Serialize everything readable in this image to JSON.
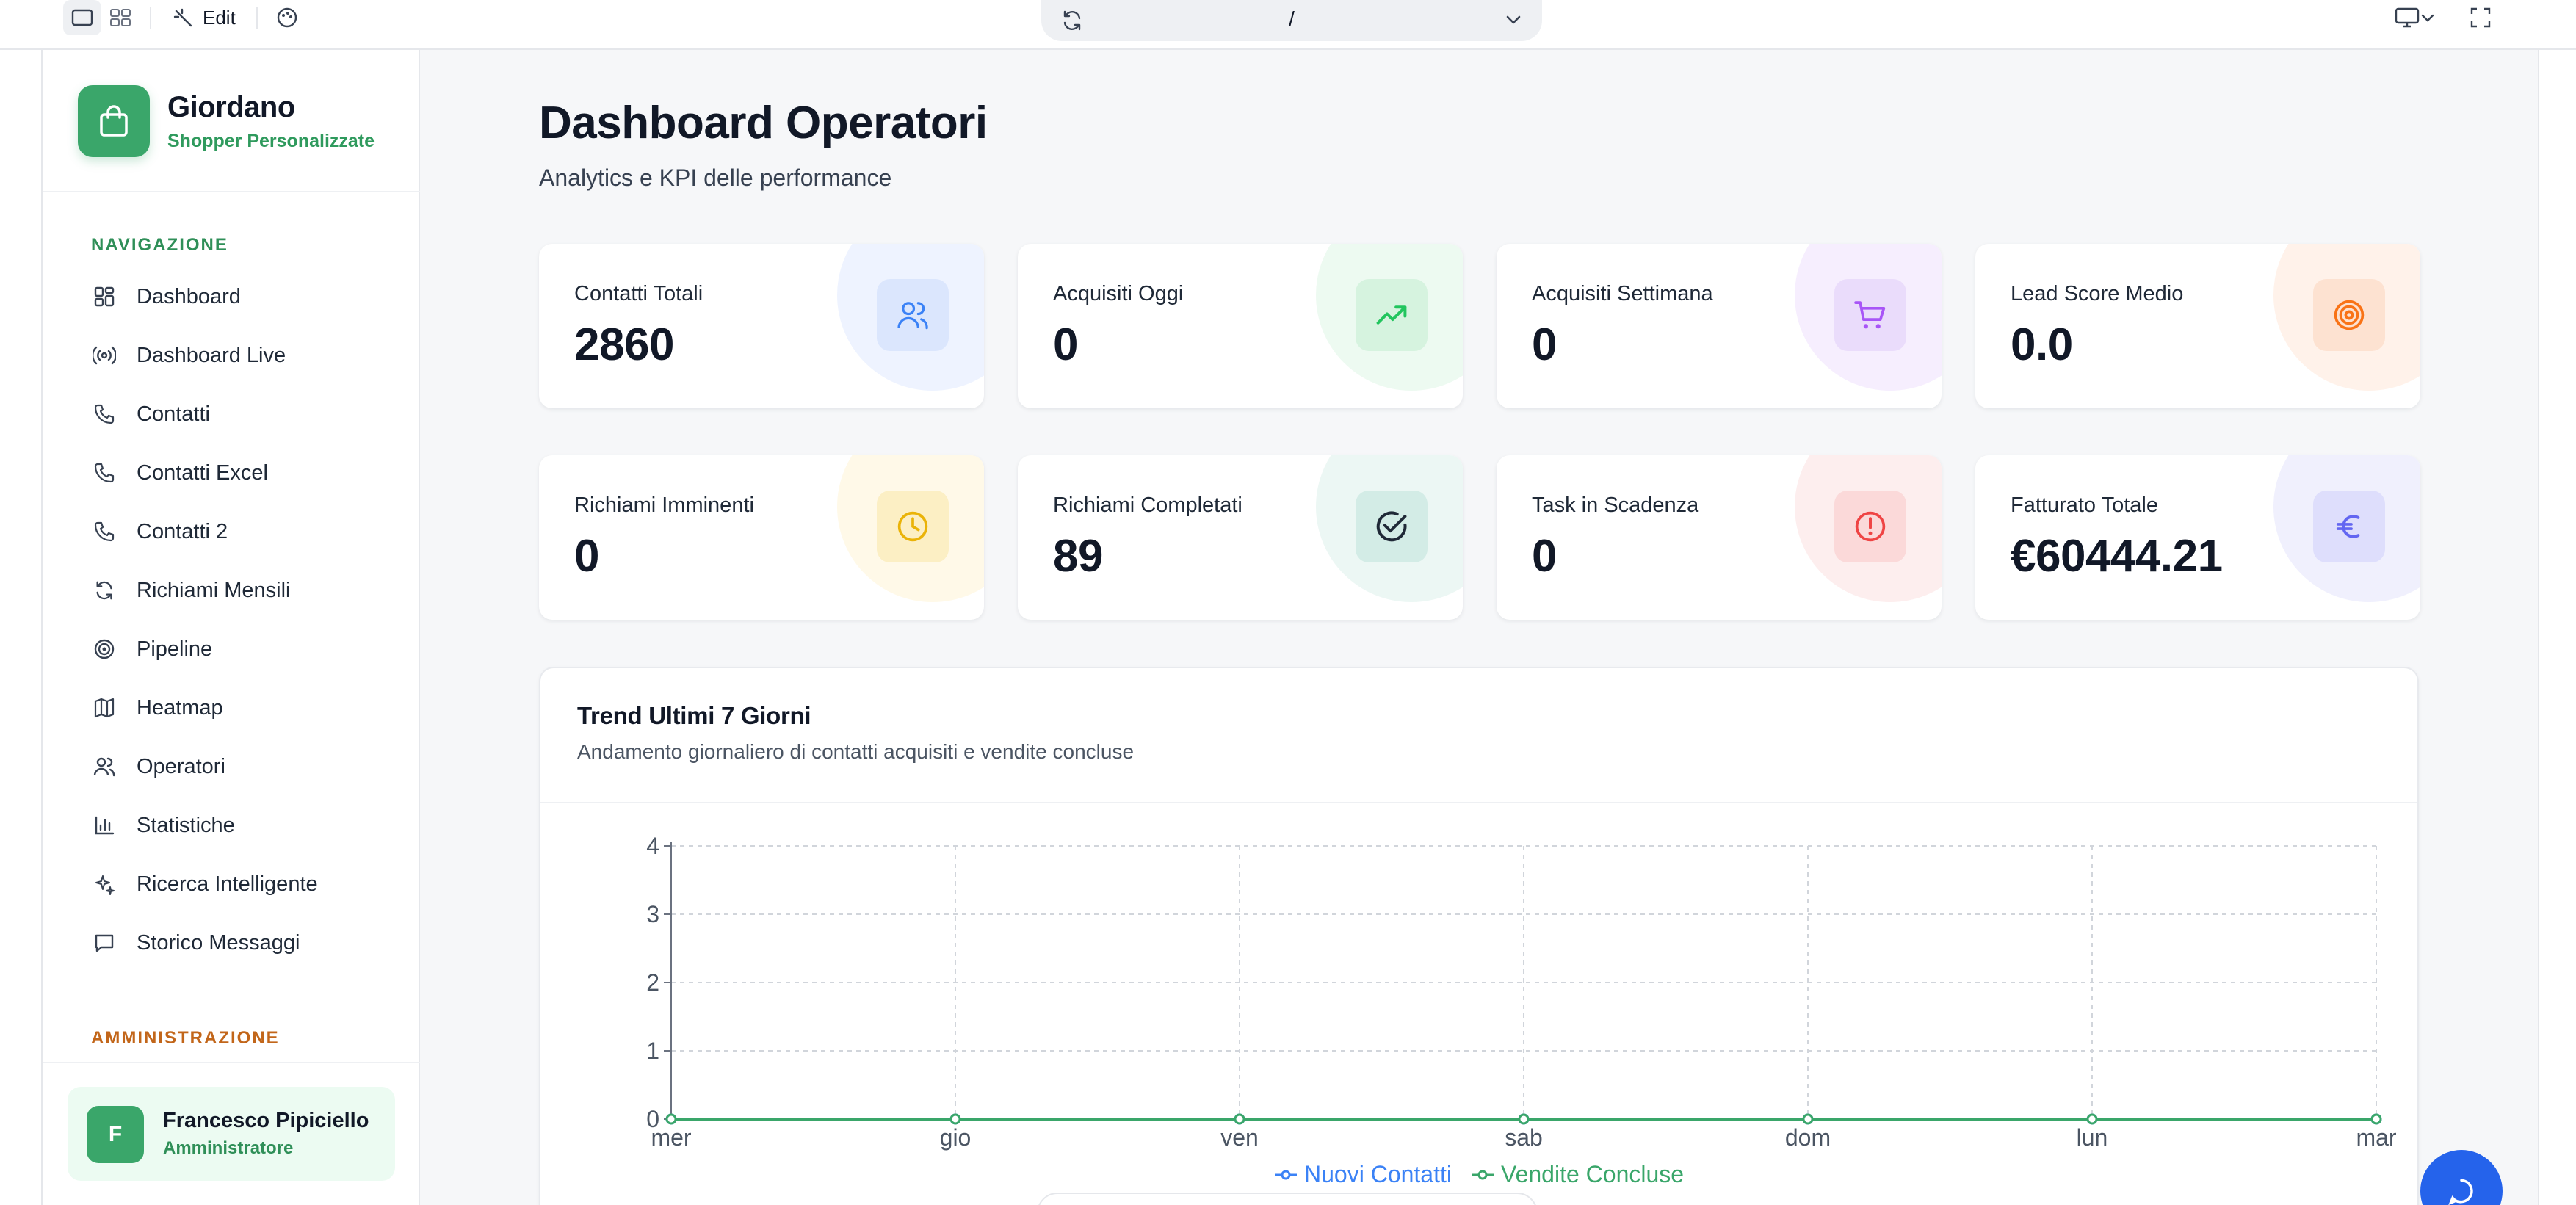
{
  "toolbar": {
    "edit_label": "Edit",
    "url_path": "/"
  },
  "brand": {
    "name": "Giordano",
    "subtitle": "Shopper Personalizzate"
  },
  "sidebar": {
    "nav_heading": "NAVIGAZIONE",
    "items": [
      {
        "label": "Dashboard",
        "icon": "grid-icon"
      },
      {
        "label": "Dashboard Live",
        "icon": "broadcast-icon"
      },
      {
        "label": "Contatti",
        "icon": "phone-icon"
      },
      {
        "label": "Contatti Excel",
        "icon": "phone-icon"
      },
      {
        "label": "Contatti 2",
        "icon": "phone-icon"
      },
      {
        "label": "Richiami Mensili",
        "icon": "refresh-icon"
      },
      {
        "label": "Pipeline",
        "icon": "target-icon"
      },
      {
        "label": "Heatmap",
        "icon": "map-icon"
      },
      {
        "label": "Operatori",
        "icon": "users-icon"
      },
      {
        "label": "Statistiche",
        "icon": "bar-chart-icon"
      },
      {
        "label": "Ricerca Intelligente",
        "icon": "sparkles-icon"
      },
      {
        "label": "Storico Messaggi",
        "icon": "message-icon"
      }
    ],
    "admin_heading": "AMMINISTRAZIONE"
  },
  "user": {
    "initial": "F",
    "name": "Francesco Pipiciello",
    "role": "Amministratore"
  },
  "page": {
    "title": "Dashboard Operatori",
    "subtitle": "Analytics e KPI delle performance"
  },
  "kpis": [
    {
      "label": "Contatti Totali",
      "value": "2860",
      "icon": "users-icon",
      "color": "#3b82f6",
      "tint": "#eef3ff",
      "box": "#dbe6fd"
    },
    {
      "label": "Acquisiti Oggi",
      "value": "0",
      "icon": "trending-up-icon",
      "color": "#22c55e",
      "tint": "#edfaf1",
      "box": "#d6f3df"
    },
    {
      "label": "Acquisiti Settimana",
      "value": "0",
      "icon": "cart-icon",
      "color": "#a855f7",
      "tint": "#f6eefe",
      "box": "#eadcfb"
    },
    {
      "label": "Lead Score Medio",
      "value": "0.0",
      "icon": "target-icon",
      "color": "#f97316",
      "tint": "#fff2ea",
      "box": "#fde2d1"
    },
    {
      "label": "Richiami Imminenti",
      "value": "0",
      "icon": "clock-icon",
      "color": "#eab308",
      "tint": "#fff9e8",
      "box": "#fcefc4"
    },
    {
      "label": "Richiami Completati",
      "value": "89",
      "icon": "check-circle-icon",
      "color": "#1f2937",
      "tint": "#ecf7f4",
      "box": "#d3ece6"
    },
    {
      "label": "Task in Scadenza",
      "value": "0",
      "icon": "alert-circle-icon",
      "color": "#ef4444",
      "tint": "#fdeeee",
      "box": "#fbd9d9"
    },
    {
      "label": "Fatturato Totale",
      "value": "€60444.21",
      "icon": "euro-icon",
      "color": "#6366f1",
      "tint": "#f0f0fd",
      "box": "#dedefc"
    }
  ],
  "chart": {
    "title": "Trend Ultimi 7 Giorni",
    "subtitle": "Andamento giornaliero di contatti acquisiti e vendite concluse"
  },
  "chart_data": {
    "type": "line",
    "categories": [
      "mer",
      "gio",
      "ven",
      "sab",
      "dom",
      "lun",
      "mar"
    ],
    "series": [
      {
        "name": "Nuovi Contatti",
        "values": [
          0,
          0,
          0,
          0,
          0,
          0,
          0
        ],
        "color": "#3b82f6"
      },
      {
        "name": "Vendite Concluse",
        "values": [
          0,
          0,
          0,
          0,
          0,
          0,
          0
        ],
        "color": "#3aa66a"
      }
    ],
    "y_ticks": [
      0,
      1,
      2,
      3,
      4
    ],
    "ylim": [
      0,
      4
    ],
    "grid": true,
    "legend": "bottom-center"
  }
}
